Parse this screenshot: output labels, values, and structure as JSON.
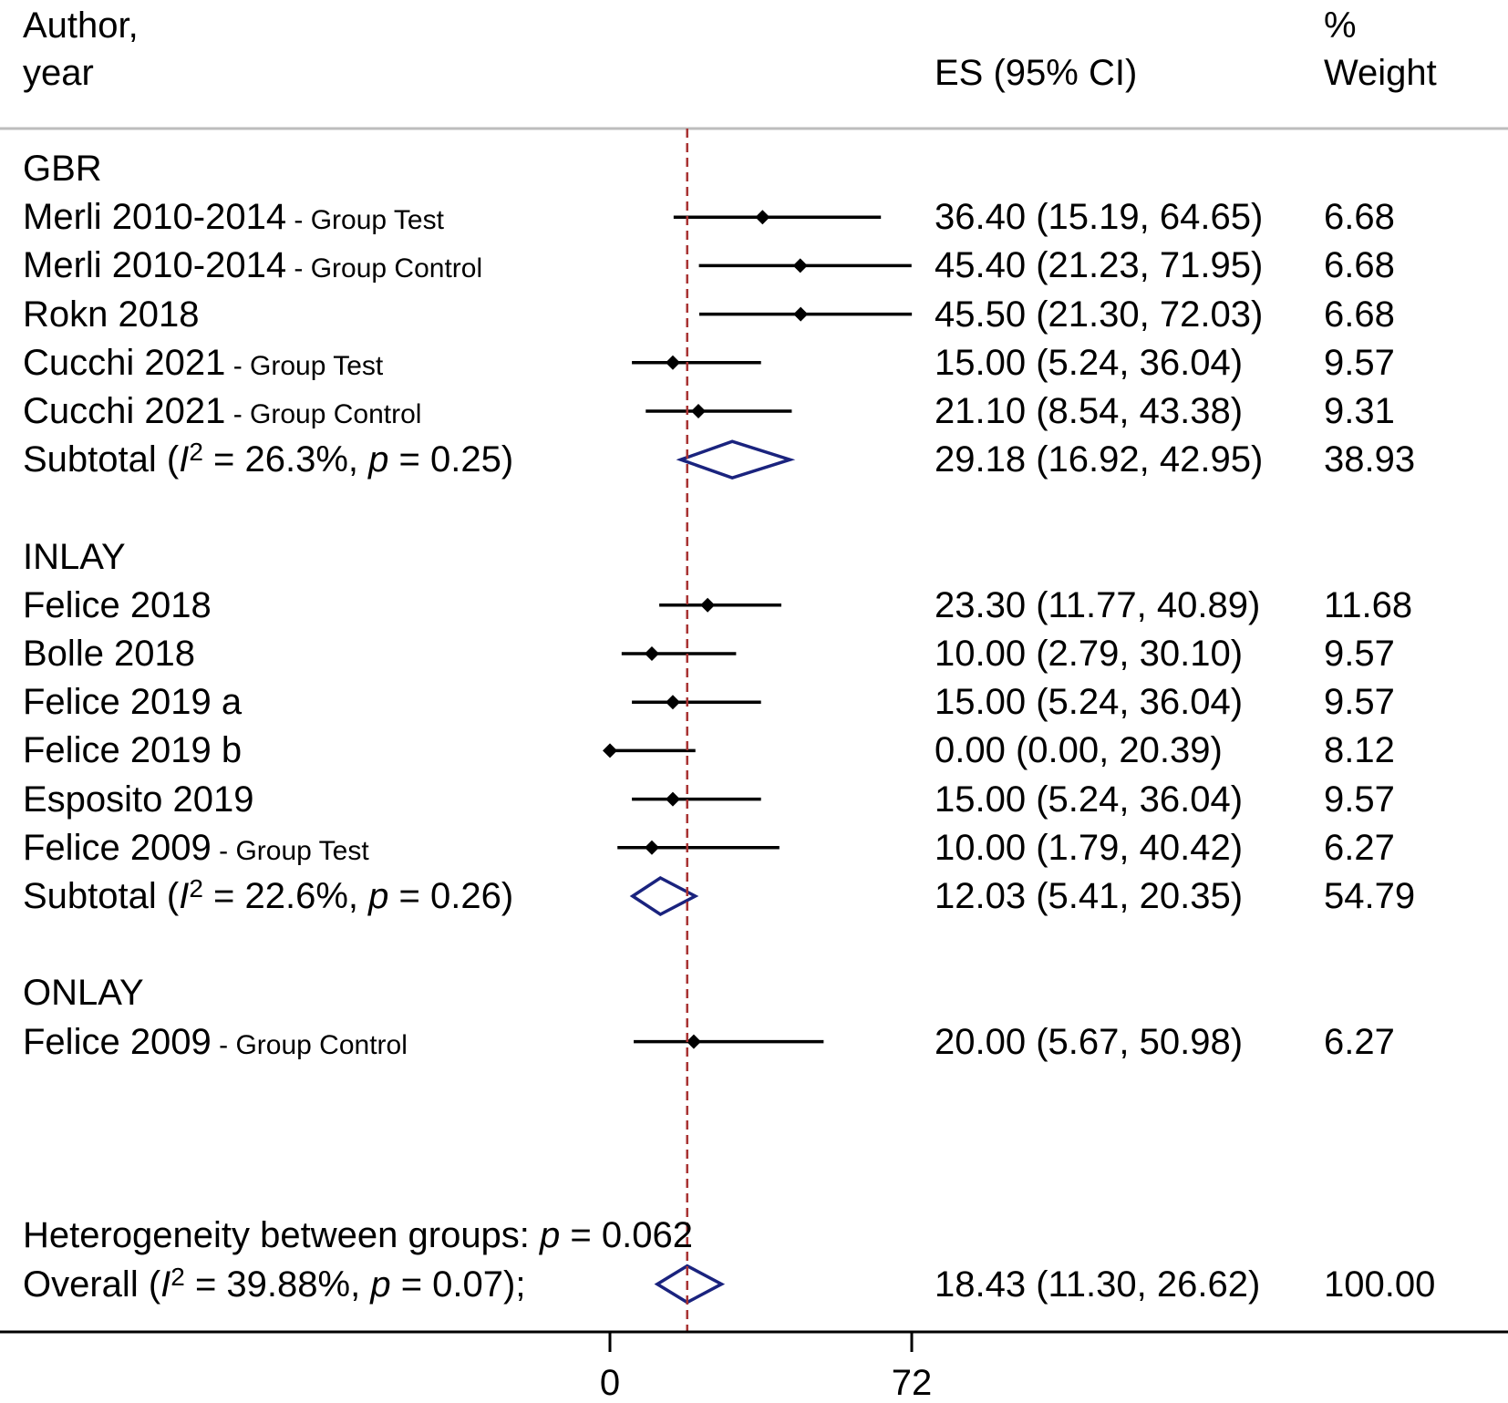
{
  "chart_data": {
    "type": "forest",
    "headers": {
      "study_line1": "Author,",
      "study_line2": "year",
      "es": "ES (95% CI)",
      "weight_line1": "%",
      "weight_line2": "Weight"
    },
    "reference_line": 18.43,
    "xaxis": {
      "ticks": [
        0,
        72
      ]
    },
    "groups": [
      {
        "name": "GBR",
        "studies": [
          {
            "label": "Merli 2010-2014",
            "note": "- Group Test",
            "es": 36.4,
            "lo": 15.19,
            "hi": 64.65,
            "es_text": "36.40 (15.19, 64.65)",
            "weight": "6.68"
          },
          {
            "label": "Merli 2010-2014",
            "note": "- Group Control",
            "es": 45.4,
            "lo": 21.23,
            "hi": 71.95,
            "es_text": "45.40 (21.23, 71.95)",
            "weight": "6.68"
          },
          {
            "label": "Rokn 2018",
            "note": "",
            "es": 45.5,
            "lo": 21.3,
            "hi": 72.03,
            "es_text": "45.50 (21.30, 72.03)",
            "weight": "6.68"
          },
          {
            "label": "Cucchi 2021",
            "note": "- Group Test",
            "es": 15.0,
            "lo": 5.24,
            "hi": 36.04,
            "es_text": "15.00 (5.24, 36.04)",
            "weight": "9.57"
          },
          {
            "label": "Cucchi 2021",
            "note": "- Group Control",
            "es": 21.1,
            "lo": 8.54,
            "hi": 43.38,
            "es_text": "21.10 (8.54, 43.38)",
            "weight": "9.31"
          }
        ],
        "subtotal": {
          "label": "Subtotal",
          "i2": "26.3%",
          "p": "0.25",
          "es": 29.18,
          "lo": 16.92,
          "hi": 42.95,
          "es_text": "29.18 (16.92, 42.95)",
          "weight": "38.93"
        }
      },
      {
        "name": "INLAY",
        "studies": [
          {
            "label": "Felice 2018",
            "note": "",
            "es": 23.3,
            "lo": 11.77,
            "hi": 40.89,
            "es_text": "23.30 (11.77, 40.89)",
            "weight": "11.68"
          },
          {
            "label": "Bolle 2018",
            "note": "",
            "es": 10.0,
            "lo": 2.79,
            "hi": 30.1,
            "es_text": "10.00 (2.79, 30.10)",
            "weight": "9.57"
          },
          {
            "label": "Felice 2019 a",
            "note": "",
            "es": 15.0,
            "lo": 5.24,
            "hi": 36.04,
            "es_text": "15.00 (5.24, 36.04)",
            "weight": "9.57"
          },
          {
            "label": "Felice 2019 b",
            "note": "",
            "es": 0.0,
            "lo": 0.0,
            "hi": 20.39,
            "es_text": "0.00 (0.00, 20.39)",
            "weight": "8.12"
          },
          {
            "label": "Esposito 2019",
            "note": "",
            "es": 15.0,
            "lo": 5.24,
            "hi": 36.04,
            "es_text": "15.00 (5.24, 36.04)",
            "weight": "9.57"
          },
          {
            "label": "Felice 2009",
            "note": "- Group Test",
            "es": 10.0,
            "lo": 1.79,
            "hi": 40.42,
            "es_text": "10.00 (1.79, 40.42)",
            "weight": "6.27"
          }
        ],
        "subtotal": {
          "label": "Subtotal",
          "i2": "22.6%",
          "p": "0.26",
          "es": 12.03,
          "lo": 5.41,
          "hi": 20.35,
          "es_text": "12.03 (5.41, 20.35)",
          "weight": "54.79"
        }
      },
      {
        "name": "ONLAY",
        "studies": [
          {
            "label": "Felice 2009",
            "note": "- Group Control",
            "es": 20.0,
            "lo": 5.67,
            "hi": 50.98,
            "es_text": "20.00 (5.67, 50.98)",
            "weight": "6.27"
          }
        ]
      }
    ],
    "heterogeneity": {
      "label": "Heterogeneity between groups:",
      "p": "0.062"
    },
    "overall": {
      "label": "Overall",
      "i2": "39.88%",
      "p": "0.07",
      "es": 18.43,
      "lo": 11.3,
      "hi": 26.62,
      "es_text": "18.43 (11.30, 26.62)",
      "weight": "100.00"
    },
    "colors": {
      "diamond": "#1a237e",
      "reference": "#a83232",
      "marker": "#000000"
    }
  }
}
